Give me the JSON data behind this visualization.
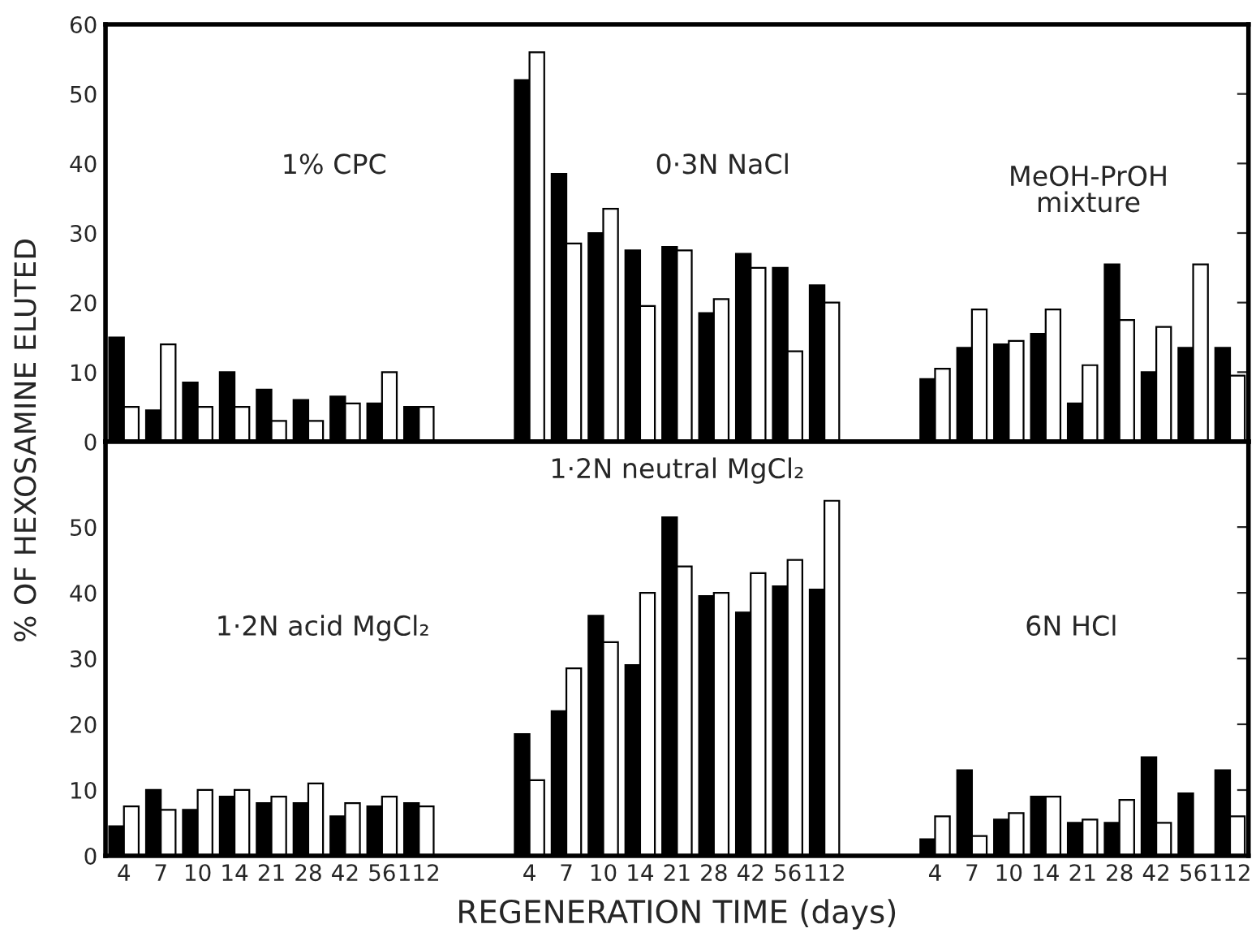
{
  "chart_data": [
    {
      "type": "bar",
      "ylabel": "% OF HEXOSAMINE ELUTED",
      "categories": [
        null,
        null,
        null,
        null,
        null,
        null,
        null,
        null,
        null,
        null,
        null,
        null,
        null,
        null,
        null,
        null,
        null,
        null,
        null,
        null,
        null,
        null,
        null,
        null,
        null,
        null,
        null,
        null,
        null,
        null,
        null
      ],
      "series": [
        {
          "color": "#000000",
          "values": [
            15,
            4.5,
            8.5,
            10,
            7.5,
            6,
            6.5,
            5.5,
            5,
            null,
            null,
            52,
            38.5,
            30,
            27.5,
            28,
            18.5,
            27,
            25,
            22.5,
            null,
            null,
            9,
            13.5,
            14,
            15.5,
            5.5,
            25.5,
            10,
            13.5,
            13.5
          ]
        },
        {
          "color": "#ffffff",
          "values": [
            5,
            14,
            5,
            5,
            3,
            3,
            5.5,
            10,
            5,
            null,
            null,
            56,
            28.5,
            33.5,
            19.5,
            27.5,
            20.5,
            25,
            13,
            20,
            null,
            null,
            10.5,
            19,
            14.5,
            19,
            11,
            17.5,
            16.5,
            25.5,
            9.5
          ]
        }
      ],
      "ylim": [
        0,
        60
      ],
      "yticks": [
        0,
        10,
        20,
        30,
        40,
        50,
        60
      ],
      "tick_labels": "y",
      "annotations": [
        "1% CPC",
        "0·3N NaCl",
        "MeOH-PrOH\nmixture"
      ]
    },
    {
      "type": "bar",
      "xlabel": "REGENERATION TIME (days)",
      "categories": [
        "4",
        "7",
        "10",
        "14",
        "21",
        "28",
        "42",
        "56",
        "112",
        null,
        null,
        "4",
        "7",
        "10",
        "14",
        "21",
        "28",
        "42",
        "56",
        "112",
        null,
        null,
        "4",
        "7",
        "10",
        "14",
        "21",
        "28",
        "42",
        "56",
        "112"
      ],
      "series": [
        {
          "color": "#000000",
          "values": [
            4.5,
            10,
            7,
            9,
            8,
            8,
            6,
            7.5,
            8,
            null,
            null,
            18.5,
            22,
            36.5,
            29,
            51.5,
            39.5,
            37,
            41,
            40.5,
            null,
            null,
            2.5,
            13,
            5.5,
            9,
            5,
            5,
            15,
            9.5,
            13
          ]
        },
        {
          "color": "#ffffff",
          "values": [
            7.5,
            7,
            10,
            10,
            9,
            11,
            8,
            9,
            7.5,
            null,
            null,
            11.5,
            28.5,
            32.5,
            40,
            44,
            40,
            43,
            45,
            54,
            null,
            null,
            6,
            3,
            6.5,
            9,
            5.5,
            8.5,
            5,
            null,
            6
          ]
        }
      ],
      "ylim": [
        0,
        63
      ],
      "yticks": [
        0,
        10,
        20,
        30,
        40,
        50
      ],
      "annotations": [
        "1·2N acid MgCl₂",
        "1·2N neutral MgCl₂",
        "6N HCl"
      ]
    }
  ]
}
